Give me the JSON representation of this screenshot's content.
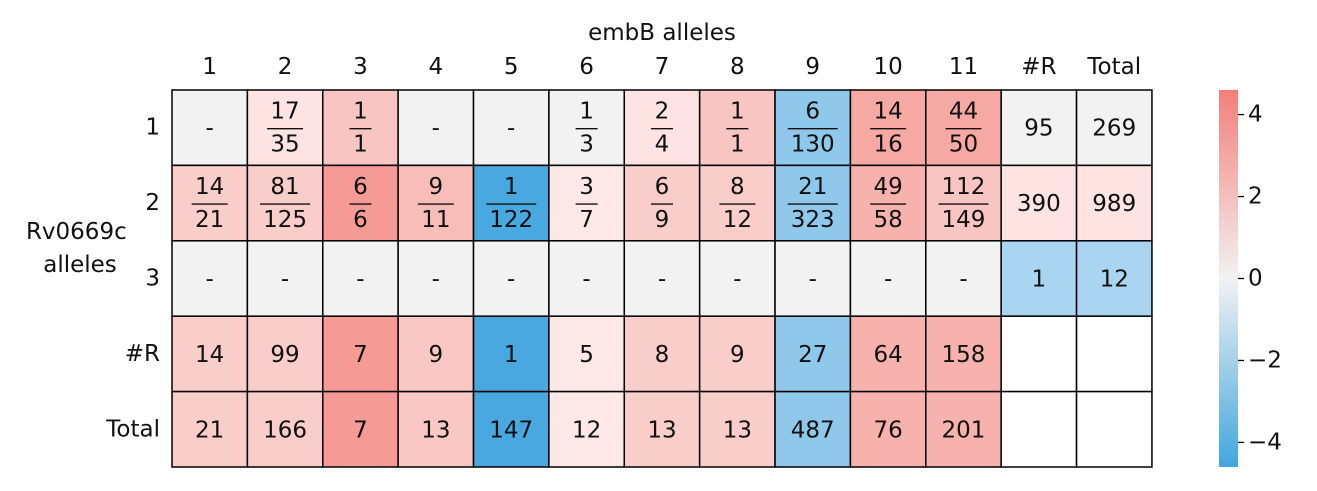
{
  "chart_data": {
    "type": "heatmap",
    "title": "",
    "xlabel": "embB alleles",
    "ylabel_lines": [
      "Rv0669c",
      "alleles"
    ],
    "col_labels": [
      "1",
      "2",
      "3",
      "4",
      "5",
      "6",
      "7",
      "8",
      "9",
      "10",
      "11",
      "#R",
      "Total"
    ],
    "row_labels": [
      "1",
      "2",
      "3",
      "#R",
      "Total"
    ],
    "cells": [
      [
        {
          "text": "-",
          "color": "#f2f2f2"
        },
        {
          "num": "17",
          "den": "35",
          "color": "#fde3e2"
        },
        {
          "num": "1",
          "den": "1",
          "color": "#f9c5c2"
        },
        {
          "text": "-",
          "color": "#f2f2f2"
        },
        {
          "text": "-",
          "color": "#f2f2f2"
        },
        {
          "num": "1",
          "den": "3",
          "color": "#f2f2f2"
        },
        {
          "num": "2",
          "den": "4",
          "color": "#fde3e2"
        },
        {
          "num": "1",
          "den": "1",
          "color": "#f9c5c2"
        },
        {
          "num": "6",
          "den": "130",
          "color": "#8fc8ea"
        },
        {
          "num": "14",
          "den": "16",
          "color": "#f6a8a3"
        },
        {
          "num": "44",
          "den": "50",
          "color": "#f6a8a3"
        },
        {
          "text": "95",
          "color": "#f2f2f2"
        },
        {
          "text": "269",
          "color": "#f2f2f2"
        }
      ],
      [
        {
          "num": "14",
          "den": "21",
          "color": "#f9cdca"
        },
        {
          "num": "81",
          "den": "125",
          "color": "#f9cdca"
        },
        {
          "num": "6",
          "den": "6",
          "color": "#f59a94"
        },
        {
          "num": "9",
          "den": "11",
          "color": "#f8bdb9"
        },
        {
          "num": "1",
          "den": "122",
          "color": "#48a8df"
        },
        {
          "num": "3",
          "den": "7",
          "color": "#fde8e7"
        },
        {
          "num": "6",
          "den": "9",
          "color": "#f9cdca"
        },
        {
          "num": "8",
          "den": "12",
          "color": "#f9cdca"
        },
        {
          "num": "21",
          "den": "323",
          "color": "#8fc8ea"
        },
        {
          "num": "49",
          "den": "58",
          "color": "#f7b2ad"
        },
        {
          "num": "112",
          "den": "149",
          "color": "#f9c5c2"
        },
        {
          "text": "390",
          "color": "#fde3e2"
        },
        {
          "text": "989",
          "color": "#fde3e2"
        }
      ],
      [
        {
          "text": "-",
          "color": "#f2f2f2"
        },
        {
          "text": "-",
          "color": "#f2f2f2"
        },
        {
          "text": "-",
          "color": "#f2f2f2"
        },
        {
          "text": "-",
          "color": "#f2f2f2"
        },
        {
          "text": "-",
          "color": "#f2f2f2"
        },
        {
          "text": "-",
          "color": "#f2f2f2"
        },
        {
          "text": "-",
          "color": "#f2f2f2"
        },
        {
          "text": "-",
          "color": "#f2f2f2"
        },
        {
          "text": "-",
          "color": "#f2f2f2"
        },
        {
          "text": "-",
          "color": "#f2f2f2"
        },
        {
          "text": "-",
          "color": "#f2f2f2"
        },
        {
          "text": "1",
          "color": "#a9d5f0"
        },
        {
          "text": "12",
          "color": "#a9d5f0"
        }
      ],
      [
        {
          "text": "14",
          "color": "#f9cdca"
        },
        {
          "text": "99",
          "color": "#f9cdca"
        },
        {
          "text": "7",
          "color": "#f59a94"
        },
        {
          "text": "9",
          "color": "#f9c8c5"
        },
        {
          "text": "1",
          "color": "#48a8df"
        },
        {
          "text": "5",
          "color": "#fde8e7"
        },
        {
          "text": "8",
          "color": "#f9cdca"
        },
        {
          "text": "9",
          "color": "#f9cdca"
        },
        {
          "text": "27",
          "color": "#8fc8ea"
        },
        {
          "text": "64",
          "color": "#f7b2ad"
        },
        {
          "text": "158",
          "color": "#f7b2ad"
        },
        {
          "text": "",
          "color": "#ffffff"
        },
        {
          "text": "",
          "color": "#ffffff"
        }
      ],
      [
        {
          "text": "21",
          "color": "#f9cdca"
        },
        {
          "text": "166",
          "color": "#f9cdca"
        },
        {
          "text": "7",
          "color": "#f59a94"
        },
        {
          "text": "13",
          "color": "#f9c8c5"
        },
        {
          "text": "147",
          "color": "#48a8df"
        },
        {
          "text": "12",
          "color": "#fde8e7"
        },
        {
          "text": "13",
          "color": "#f9cdca"
        },
        {
          "text": "13",
          "color": "#f9cdca"
        },
        {
          "text": "487",
          "color": "#8fc8ea"
        },
        {
          "text": "76",
          "color": "#f7b2ad"
        },
        {
          "text": "201",
          "color": "#f7b2ad"
        },
        {
          "text": "",
          "color": "#ffffff"
        },
        {
          "text": "",
          "color": "#ffffff"
        }
      ]
    ],
    "colorbar": {
      "min": -4.6,
      "max": 4.6,
      "ticks": [
        4,
        2,
        0,
        -2,
        -4
      ],
      "tick_labels": [
        "4",
        "2",
        "0",
        "−2",
        "−4"
      ],
      "colors": [
        "#f47e79",
        "#f2f2f2",
        "#41a6de"
      ]
    }
  }
}
